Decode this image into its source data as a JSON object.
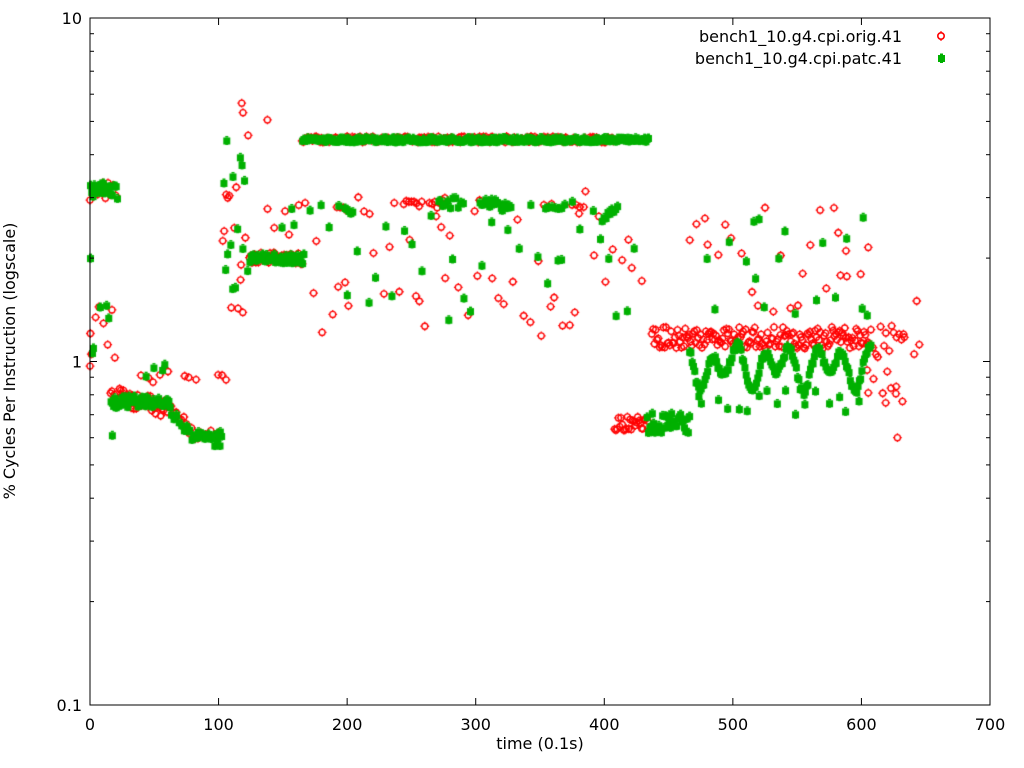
{
  "chart_data": {
    "type": "scatter",
    "title": "",
    "xlabel": "time (0.1s)",
    "ylabel": "% Cycles Per Instruction (logscale)",
    "x_range": [
      0,
      700
    ],
    "y_range": [
      0.1,
      10
    ],
    "y_scale": "log",
    "grid": false,
    "legend_position": "top-right-inside",
    "background_color": "#ffffff",
    "axis_color": "#000000",
    "x_ticks": [
      0,
      100,
      200,
      300,
      400,
      500,
      600,
      700
    ],
    "y_ticks": [
      {
        "v": 10,
        "label": "10"
      },
      {
        "v": 1,
        "label": "1"
      },
      {
        "v": 0.1,
        "label": "0.1"
      }
    ],
    "y_minor_mults": [
      2,
      3,
      4,
      5,
      6,
      7,
      8,
      9
    ],
    "series": [
      {
        "name": "bench1_10.g4.cpi.orig.41",
        "color": "#ff0000",
        "marker": "open-circle",
        "segments": [
          [
            "band",
            0,
            20,
            2,
            2.95,
            3.35
          ],
          [
            "scatter",
            1,
            20,
            3,
            0.98,
            1.45
          ],
          [
            "ramp",
            16,
            62,
            1,
            0.8,
            0.725,
            0.025
          ],
          [
            "scatter",
            40,
            62,
            5,
            0.86,
            1.0
          ],
          [
            "ramp",
            63,
            79,
            2,
            0.73,
            0.62,
            0.02
          ],
          [
            "scatter",
            74,
            84,
            4,
            0.85,
            0.95
          ],
          [
            "band",
            82,
            100,
            2,
            0.585,
            0.635
          ],
          [
            "scatter",
            99,
            106,
            3,
            0.86,
            0.95
          ],
          [
            "scatter",
            103,
            122,
            1.5,
            1.25,
            4.3
          ],
          [
            "band",
            124,
            165,
            1,
            1.92,
            2.08
          ],
          [
            "scatter",
            138,
            163,
            6,
            2.2,
            2.9
          ],
          [
            "band",
            165,
            407,
            1,
            4.35,
            4.52
          ],
          [
            "scatter",
            167,
            431,
            5,
            1.15,
            3.15
          ],
          [
            "band",
            192,
            200,
            2.5,
            2.7,
            2.82
          ],
          [
            "band",
            244,
            258,
            2,
            2.78,
            2.97
          ],
          [
            "band",
            264,
            276,
            2,
            2.77,
            3.0
          ],
          [
            "band",
            303,
            310,
            2.5,
            2.82,
            2.95
          ],
          [
            "band",
            353,
            360,
            3,
            2.8,
            2.9
          ],
          [
            "band",
            375,
            384,
            3,
            2.8,
            2.92
          ],
          [
            "band",
            408,
            434,
            1,
            0.63,
            0.69
          ],
          [
            "band",
            437,
            607,
            1,
            1.09,
            1.26
          ],
          [
            "scatter",
            465,
            604,
            6,
            1.35,
            2.85
          ],
          [
            "scatter",
            604,
            634,
            1.5,
            0.8,
            1.27
          ],
          [
            "scatter",
            618,
            636,
            5,
            0.74,
            0.9
          ]
        ],
        "points": [
          [
            118,
            5.65
          ],
          [
            119,
            5.3
          ],
          [
            138,
            5.05
          ],
          [
            123,
            4.55
          ],
          [
            0,
            0.97
          ],
          [
            1,
            1.05
          ],
          [
            582,
            2.37
          ],
          [
            588,
            2.1
          ],
          [
            628,
            0.6
          ],
          [
            643,
            1.5
          ],
          [
            645,
            1.12
          ],
          [
            641,
            1.05
          ]
        ]
      },
      {
        "name": "bench1_10.g4.cpi.patc.41",
        "color": "#00b000",
        "marker": "filled-square",
        "segments": [
          [
            "band",
            0,
            21,
            1,
            2.98,
            3.32
          ],
          [
            "scatter",
            0,
            16,
            4,
            1.05,
            1.55
          ],
          [
            "band",
            16,
            62,
            1,
            0.735,
            0.795
          ],
          [
            "scatter",
            42,
            62,
            6,
            0.9,
            1.0
          ],
          [
            "ramp",
            63,
            80,
            2,
            0.72,
            0.6,
            0.02
          ],
          [
            "scatter",
            74,
            82,
            4,
            0.6,
            0.66
          ],
          [
            "band",
            80,
            102,
            1,
            0.595,
            0.625
          ],
          [
            "scatter",
            96,
            104,
            3,
            0.565,
            0.6
          ],
          [
            "scatter",
            104,
            122,
            1.5,
            1.35,
            4.3
          ],
          [
            "band",
            124,
            166,
            1,
            1.93,
            2.06
          ],
          [
            "scatter",
            150,
            164,
            5,
            2.3,
            2.8
          ],
          [
            "band",
            165,
            434,
            1,
            4.36,
            4.49
          ],
          [
            "scatter",
            172,
            428,
            7,
            1.3,
            3.0
          ],
          [
            "band",
            198,
            205,
            1.5,
            2.7,
            2.8
          ],
          [
            "band",
            272,
            290,
            2,
            2.78,
            3.0
          ],
          [
            "band",
            303,
            328,
            1.5,
            2.8,
            2.97
          ],
          [
            "band",
            354,
            369,
            2.5,
            2.78,
            2.9
          ],
          [
            "ramp",
            398,
            411,
            1.5,
            2.58,
            2.86,
            0.01
          ],
          [
            "band",
            433,
            466,
            1,
            0.62,
            0.71
          ],
          [
            "wave",
            466,
            607,
            1,
            0.97,
            0.075,
            0.31,
            0.057
          ],
          [
            "scatter",
            470,
            601,
            8,
            0.7,
            0.84
          ],
          [
            "scatter",
            480,
            606,
            9,
            1.35,
            2.65
          ]
        ],
        "points": [
          [
            0,
            2.0
          ],
          [
            17,
            0.61
          ],
          [
            601,
            2.63
          ],
          [
            520,
            2.6
          ],
          [
            516,
            2.56
          ],
          [
            106,
            4.4
          ]
        ]
      }
    ]
  }
}
